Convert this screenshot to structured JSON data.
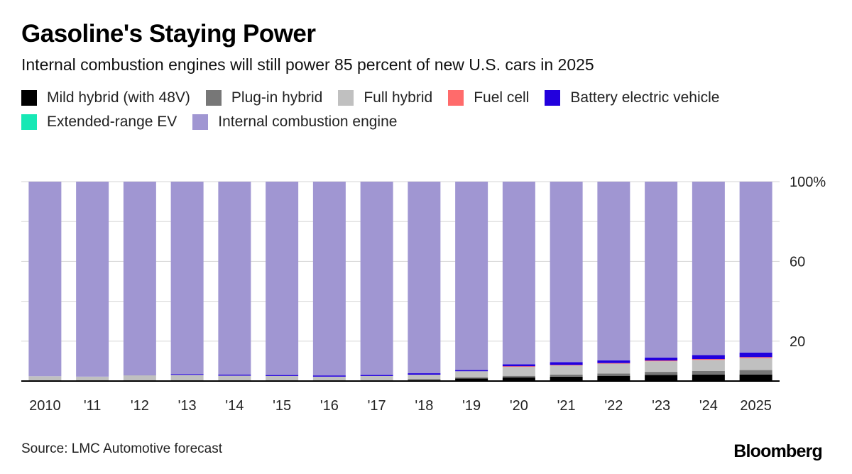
{
  "title": "Gasoline's Staying Power",
  "subtitle": "Internal combustion engines will still power 85 percent of new U.S. cars in 2025",
  "source": "Source: LMC Automotive forecast",
  "logo": "Bloomberg",
  "legend": [
    {
      "label": "Mild hybrid (with 48V)",
      "color": "#000000"
    },
    {
      "label": "Plug-in hybrid",
      "color": "#777777"
    },
    {
      "label": "Full hybrid",
      "color": "#c0c0c0"
    },
    {
      "label": "Fuel cell",
      "color": "#ff6b6b"
    },
    {
      "label": "Battery electric vehicle",
      "color": "#2200dd"
    },
    {
      "label": "Extended-range EV",
      "color": "#17e8b5"
    },
    {
      "label": "Internal combustion engine",
      "color": "#a096d2"
    }
  ],
  "chart_data": {
    "type": "bar",
    "stacked": true,
    "categories": [
      "2010",
      "'11",
      "'12",
      "'13",
      "'14",
      "'15",
      "'16",
      "'17",
      "'18",
      "'19",
      "'20",
      "'21",
      "'22",
      "'23",
      "'24",
      "2025"
    ],
    "ylim": [
      0,
      100
    ],
    "y_ticks": [
      20,
      60,
      100
    ],
    "y_tick_labels": [
      "20",
      "60",
      "100%"
    ],
    "y_axis_side": "right",
    "grid": true,
    "legend_position": "top",
    "series": [
      {
        "name": "Mild hybrid (with 48V)",
        "color": "#000000",
        "values": [
          0,
          0,
          0,
          0,
          0,
          0,
          0,
          0,
          0.5,
          1.3,
          1.8,
          2.2,
          2.6,
          3.1,
          3.2,
          3.3
        ]
      },
      {
        "name": "Plug-in hybrid",
        "color": "#777777",
        "values": [
          0,
          0,
          0,
          0.1,
          0.1,
          0.2,
          0.2,
          0.3,
          0.5,
          0.6,
          0.8,
          1.0,
          1.2,
          1.5,
          1.8,
          2.2
        ]
      },
      {
        "name": "Full hybrid",
        "color": "#c0c0c0",
        "values": [
          2.4,
          2.2,
          3.1,
          3.0,
          2.6,
          2.3,
          2.0,
          2.2,
          2.2,
          3.0,
          4.5,
          4.6,
          4.9,
          5.3,
          5.6,
          6.0
        ]
      },
      {
        "name": "Fuel cell",
        "color": "#ff6b6b",
        "values": [
          0,
          0,
          0,
          0,
          0,
          0,
          0,
          0,
          0,
          0,
          0.3,
          0.3,
          0.3,
          0.4,
          0.4,
          0.5
        ]
      },
      {
        "name": "Battery electric vehicle",
        "color": "#2200dd",
        "values": [
          0,
          0,
          0.1,
          0.4,
          0.5,
          0.5,
          0.6,
          0.6,
          0.7,
          0.6,
          1.0,
          1.4,
          1.4,
          1.5,
          2.0,
          2.3
        ]
      },
      {
        "name": "Extended-range EV",
        "color": "#17e8b5",
        "values": [
          0,
          0,
          0,
          0,
          0,
          0,
          0,
          0,
          0,
          0,
          0,
          0,
          0,
          0,
          0,
          0
        ]
      },
      {
        "name": "Internal combustion engine",
        "color": "#a096d2",
        "values": [
          97.6,
          97.8,
          96.8,
          96.5,
          96.8,
          97.0,
          97.2,
          96.9,
          96.1,
          94.5,
          91.6,
          90.5,
          89.6,
          88.2,
          87.0,
          85.7
        ]
      }
    ]
  }
}
